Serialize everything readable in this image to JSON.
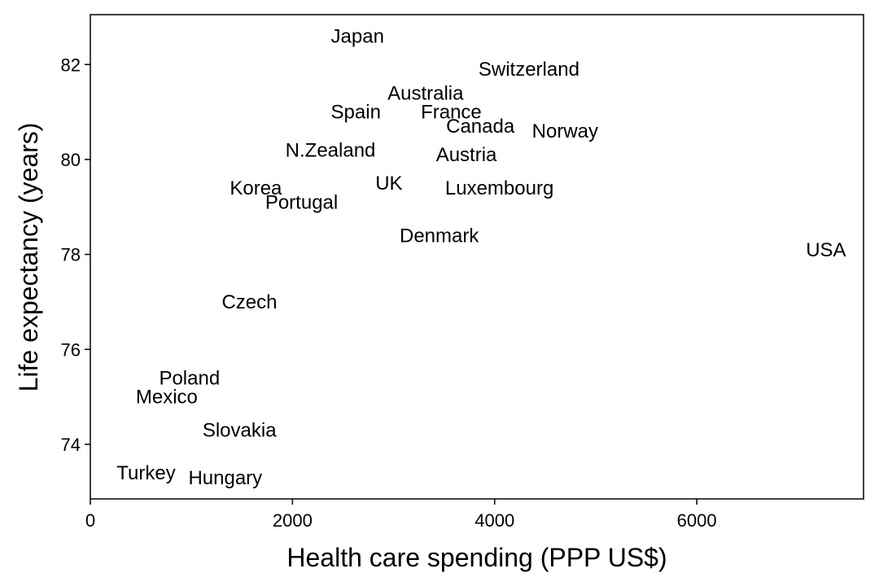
{
  "chart_data": {
    "type": "scatter",
    "title": "",
    "xlabel": "Health care spending (PPP US$)",
    "ylabel": "Life expectancy (years)",
    "xlim": [
      0,
      7650
    ],
    "ylim": [
      72.85,
      83.05
    ],
    "xticks": [
      0,
      2000,
      4000,
      6000
    ],
    "yticks": [
      74,
      76,
      78,
      80,
      82
    ],
    "grid": false,
    "points": [
      {
        "label": "Japan",
        "x": 2380,
        "y": 82.6
      },
      {
        "label": "Switzerland",
        "x": 3840,
        "y": 81.9
      },
      {
        "label": "Australia",
        "x": 2940,
        "y": 81.4
      },
      {
        "label": "Spain",
        "x": 2380,
        "y": 81.0
      },
      {
        "label": "France",
        "x": 3270,
        "y": 81.0
      },
      {
        "label": "Canada",
        "x": 3520,
        "y": 80.7
      },
      {
        "label": "Norway",
        "x": 4370,
        "y": 80.6
      },
      {
        "label": "N.Zealand",
        "x": 1930,
        "y": 80.2
      },
      {
        "label": "Austria",
        "x": 3420,
        "y": 80.1
      },
      {
        "label": "UK",
        "x": 2820,
        "y": 79.5
      },
      {
        "label": "Luxembourg",
        "x": 3510,
        "y": 79.4
      },
      {
        "label": "Korea",
        "x": 1380,
        "y": 79.4
      },
      {
        "label": "Portugal",
        "x": 1730,
        "y": 79.1
      },
      {
        "label": "Denmark",
        "x": 3060,
        "y": 78.4
      },
      {
        "label": "USA",
        "x": 7080,
        "y": 78.1
      },
      {
        "label": "Czech",
        "x": 1300,
        "y": 77.0
      },
      {
        "label": "Poland",
        "x": 680,
        "y": 75.4
      },
      {
        "label": "Mexico",
        "x": 450,
        "y": 75.0
      },
      {
        "label": "Slovakia",
        "x": 1110,
        "y": 74.3
      },
      {
        "label": "Turkey",
        "x": 260,
        "y": 73.4
      },
      {
        "label": "Hungary",
        "x": 970,
        "y": 73.3
      }
    ]
  }
}
